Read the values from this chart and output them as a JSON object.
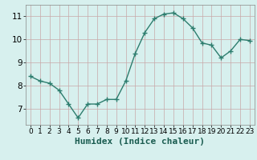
{
  "x": [
    0,
    1,
    2,
    3,
    4,
    5,
    6,
    7,
    8,
    9,
    10,
    11,
    12,
    13,
    14,
    15,
    16,
    17,
    18,
    19,
    20,
    21,
    22,
    23
  ],
  "y": [
    8.4,
    8.2,
    8.1,
    7.8,
    7.2,
    6.6,
    7.2,
    7.2,
    7.4,
    7.4,
    8.2,
    9.4,
    10.3,
    10.9,
    11.1,
    11.15,
    10.9,
    10.5,
    9.85,
    9.75,
    9.2,
    9.5,
    10.0,
    9.95
  ],
  "xlabel": "Humidex (Indice chaleur)",
  "ylim": [
    6.3,
    11.5
  ],
  "xlim": [
    -0.5,
    23.5
  ],
  "yticks": [
    7,
    8,
    9,
    10,
    11
  ],
  "xticks": [
    0,
    1,
    2,
    3,
    4,
    5,
    6,
    7,
    8,
    9,
    10,
    11,
    12,
    13,
    14,
    15,
    16,
    17,
    18,
    19,
    20,
    21,
    22,
    23
  ],
  "line_color": "#2d7d6e",
  "bg_color": "#d7f0ee",
  "grid_color": "#c8a8a8",
  "marker": "+",
  "marker_size": 4,
  "linewidth": 1.0,
  "xlabel_fontsize": 8,
  "tick_fontsize": 6.5,
  "ytick_fontsize": 7.5
}
